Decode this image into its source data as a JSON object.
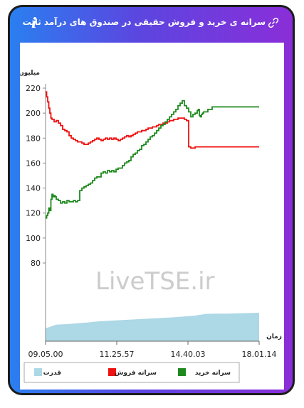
{
  "header": {
    "title": "سرانه ی خرید و فروش حقیقی در صندوق های درآمد ثابت",
    "link_icon": "link-icon",
    "info_icon": "info-icon",
    "info_glyph": "i"
  },
  "watermark": "LiveTSE.ir",
  "colors": {
    "buy": "#1e8a1e",
    "sell": "#ee1111",
    "power": "#add8e6",
    "frame_start": "#2a7ff0",
    "frame_end": "#8a2ed8"
  },
  "chart_data": {
    "type": "line",
    "ylabel": "میلیون تومان",
    "xlabel": "زمان",
    "yticks": [
      80,
      100,
      120,
      140,
      160,
      180,
      200,
      220
    ],
    "ylim": [
      80,
      220
    ],
    "xticks": [
      "09.05.00",
      "11.25.57",
      "14.40.03",
      "18.01.14"
    ],
    "legend": [
      {
        "label": "قدرت",
        "color": "#add8e6"
      },
      {
        "label": "سرانه فروش",
        "color": "#ee1111"
      },
      {
        "label": "سرانه خرید",
        "color": "#1e8a1e"
      }
    ],
    "series": [
      {
        "name": "سرانه خرید",
        "x": [
          0.0,
          0.005,
          0.01,
          0.015,
          0.02,
          0.025,
          0.03,
          0.035,
          0.04,
          0.045,
          0.05,
          0.06,
          0.07,
          0.08,
          0.09,
          0.1,
          0.11,
          0.12,
          0.13,
          0.14,
          0.15,
          0.16,
          0.17,
          0.18,
          0.19,
          0.2,
          0.21,
          0.22,
          0.23,
          0.24,
          0.25,
          0.26,
          0.27,
          0.28,
          0.29,
          0.3,
          0.31,
          0.32,
          0.33,
          0.34,
          0.35,
          0.36,
          0.37,
          0.38,
          0.39,
          0.4,
          0.41,
          0.42,
          0.43,
          0.44,
          0.45,
          0.46,
          0.47,
          0.48,
          0.49,
          0.5,
          0.51,
          0.52,
          0.53,
          0.54,
          0.55,
          0.56,
          0.57,
          0.58,
          0.59,
          0.6,
          0.61,
          0.62,
          0.63,
          0.64,
          0.65,
          0.66,
          0.67,
          0.68,
          0.69,
          0.7,
          0.71,
          0.715,
          0.72,
          0.725,
          0.73,
          0.735,
          0.74,
          0.75,
          0.76,
          0.77,
          0.78,
          0.79,
          0.8,
          1.0
        ],
        "values": [
          116,
          118,
          120,
          124,
          122,
          131,
          135,
          133,
          134,
          133,
          131,
          130,
          128,
          129,
          128,
          130,
          129,
          129,
          130,
          129,
          130,
          138,
          140,
          141,
          142,
          143,
          144,
          146,
          148,
          149,
          149,
          152,
          153,
          152,
          154,
          153,
          154,
          153,
          155,
          156,
          156,
          158,
          160,
          161,
          162,
          165,
          167,
          168,
          170,
          171,
          174,
          175,
          177,
          179,
          181,
          182,
          184,
          186,
          188,
          190,
          191,
          193,
          195,
          197,
          199,
          201,
          203,
          206,
          208,
          210,
          206,
          204,
          201,
          197,
          199,
          200,
          202,
          203,
          198,
          197,
          199,
          200,
          201,
          201,
          203,
          203,
          205,
          205,
          205,
          205
        ]
      },
      {
        "name": "سرانه فروش",
        "x": [
          0.0,
          0.005,
          0.01,
          0.015,
          0.02,
          0.025,
          0.03,
          0.04,
          0.05,
          0.06,
          0.07,
          0.08,
          0.09,
          0.1,
          0.11,
          0.12,
          0.13,
          0.14,
          0.15,
          0.16,
          0.17,
          0.18,
          0.19,
          0.2,
          0.21,
          0.22,
          0.23,
          0.24,
          0.25,
          0.26,
          0.27,
          0.28,
          0.29,
          0.3,
          0.31,
          0.32,
          0.33,
          0.34,
          0.35,
          0.36,
          0.37,
          0.38,
          0.39,
          0.4,
          0.41,
          0.42,
          0.43,
          0.44,
          0.45,
          0.46,
          0.47,
          0.48,
          0.49,
          0.5,
          0.51,
          0.52,
          0.53,
          0.54,
          0.55,
          0.56,
          0.57,
          0.58,
          0.59,
          0.6,
          0.61,
          0.62,
          0.63,
          0.64,
          0.65,
          0.66,
          0.67,
          0.68,
          0.69,
          0.7,
          0.71,
          0.72,
          0.73,
          0.74,
          0.75,
          1.0
        ],
        "values": [
          217,
          213,
          209,
          204,
          200,
          196,
          195,
          193,
          194,
          192,
          190,
          187,
          186,
          185,
          182,
          180,
          179,
          178,
          177,
          177,
          176,
          175,
          175,
          176,
          177,
          178,
          179,
          180,
          179,
          178,
          179,
          180,
          179,
          180,
          179,
          180,
          179,
          178,
          179,
          180,
          181,
          182,
          181,
          182,
          183,
          184,
          185,
          185,
          186,
          186,
          187,
          188,
          188,
          189,
          189,
          190,
          191,
          191,
          192,
          192,
          193,
          194,
          194,
          195,
          195,
          196,
          196,
          196,
          195,
          194,
          173,
          172,
          172,
          173,
          173,
          173,
          173,
          173,
          173,
          173
        ]
      },
      {
        "name": "قدرت",
        "x": [
          0.0,
          0.05,
          0.1,
          0.15,
          0.2,
          0.25,
          0.3,
          0.35,
          0.4,
          0.45,
          0.5,
          0.55,
          0.6,
          0.65,
          0.7,
          0.75,
          0.8,
          0.85,
          0.9,
          0.95,
          1.0
        ],
        "values": [
          0.45,
          0.58,
          0.6,
          0.63,
          0.66,
          0.7,
          0.72,
          0.74,
          0.76,
          0.78,
          0.8,
          0.82,
          0.84,
          0.87,
          0.9,
          0.96,
          0.97,
          0.97,
          0.98,
          0.99,
          1.0
        ]
      }
    ]
  }
}
